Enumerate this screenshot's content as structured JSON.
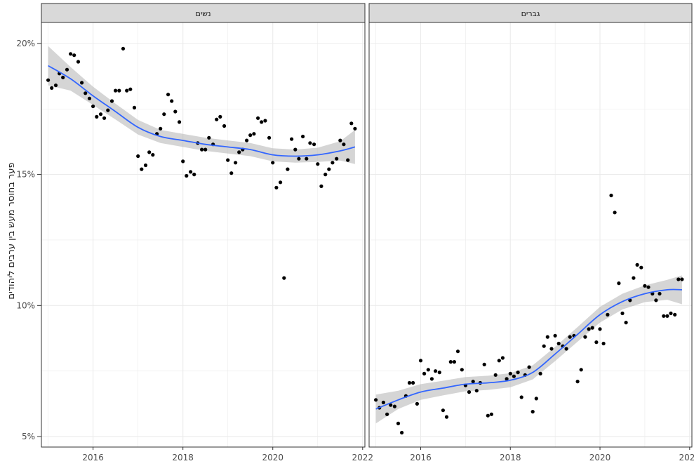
{
  "chart_data": {
    "type": "scatter",
    "ylabel": "פער בחוסר מעש בין ערבים ליהודים",
    "xlim": [
      2014.85,
      2022.05
    ],
    "ylim": [
      4.6,
      20.8
    ],
    "x_ticks": [
      2016,
      2018,
      2020,
      2022
    ],
    "x_tick_labels": [
      "2016",
      "2018",
      "2020",
      "2022"
    ],
    "y_ticks": [
      5,
      10,
      15,
      20
    ],
    "y_tick_labels": [
      "5%",
      "10%",
      "15%",
      "20%"
    ],
    "grid": true,
    "colors": {
      "points": "#000000",
      "smooth_line": "#3366ff",
      "ribbon": "#b3b3b3",
      "strip_fill": "#d9d9d9",
      "gridline": "#ebebeb",
      "panel_border": "#333333"
    },
    "panels": [
      {
        "name": "נשים",
        "points": [
          [
            2015.0,
            18.6
          ],
          [
            2015.08,
            18.3
          ],
          [
            2015.17,
            18.4
          ],
          [
            2015.25,
            18.85
          ],
          [
            2015.33,
            18.7
          ],
          [
            2015.42,
            19.0
          ],
          [
            2015.5,
            19.6
          ],
          [
            2015.58,
            19.55
          ],
          [
            2015.67,
            19.3
          ],
          [
            2015.75,
            18.5
          ],
          [
            2015.83,
            18.1
          ],
          [
            2015.92,
            17.9
          ],
          [
            2016.0,
            17.6
          ],
          [
            2016.08,
            17.2
          ],
          [
            2016.17,
            17.3
          ],
          [
            2016.25,
            17.15
          ],
          [
            2016.33,
            17.45
          ],
          [
            2016.42,
            17.8
          ],
          [
            2016.5,
            18.2
          ],
          [
            2016.58,
            18.2
          ],
          [
            2016.67,
            19.8
          ],
          [
            2016.75,
            18.2
          ],
          [
            2016.83,
            18.25
          ],
          [
            2016.92,
            17.55
          ],
          [
            2017.0,
            15.7
          ],
          [
            2017.08,
            15.2
          ],
          [
            2017.17,
            15.35
          ],
          [
            2017.25,
            15.85
          ],
          [
            2017.33,
            15.75
          ],
          [
            2017.42,
            16.55
          ],
          [
            2017.5,
            16.75
          ],
          [
            2017.58,
            17.3
          ],
          [
            2017.67,
            18.05
          ],
          [
            2017.75,
            17.8
          ],
          [
            2017.83,
            17.4
          ],
          [
            2017.92,
            17.0
          ],
          [
            2018.0,
            15.5
          ],
          [
            2018.08,
            14.95
          ],
          [
            2018.17,
            15.1
          ],
          [
            2018.25,
            15.0
          ],
          [
            2018.33,
            16.2
          ],
          [
            2018.42,
            15.95
          ],
          [
            2018.5,
            15.95
          ],
          [
            2018.58,
            16.4
          ],
          [
            2018.67,
            16.15
          ],
          [
            2018.75,
            17.1
          ],
          [
            2018.83,
            17.2
          ],
          [
            2018.92,
            16.85
          ],
          [
            2019.0,
            15.55
          ],
          [
            2019.08,
            15.05
          ],
          [
            2019.17,
            15.45
          ],
          [
            2019.25,
            15.85
          ],
          [
            2019.33,
            15.95
          ],
          [
            2019.42,
            16.3
          ],
          [
            2019.5,
            16.5
          ],
          [
            2019.58,
            16.55
          ],
          [
            2019.67,
            17.15
          ],
          [
            2019.75,
            17.0
          ],
          [
            2019.83,
            17.05
          ],
          [
            2019.92,
            16.4
          ],
          [
            2020.0,
            15.45
          ],
          [
            2020.08,
            14.5
          ],
          [
            2020.17,
            14.7
          ],
          [
            2020.25,
            11.05
          ],
          [
            2020.33,
            15.2
          ],
          [
            2020.42,
            16.35
          ],
          [
            2020.5,
            15.95
          ],
          [
            2020.58,
            15.6
          ],
          [
            2020.67,
            16.45
          ],
          [
            2020.75,
            15.6
          ],
          [
            2020.83,
            16.2
          ],
          [
            2020.92,
            16.15
          ],
          [
            2021.0,
            15.4
          ],
          [
            2021.08,
            14.55
          ],
          [
            2021.17,
            15.0
          ],
          [
            2021.25,
            15.2
          ],
          [
            2021.33,
            15.45
          ],
          [
            2021.42,
            15.6
          ],
          [
            2021.5,
            16.3
          ],
          [
            2021.58,
            16.15
          ],
          [
            2021.67,
            15.55
          ],
          [
            2021.75,
            16.95
          ],
          [
            2021.83,
            16.75
          ]
        ],
        "smooth": [
          [
            2015.0,
            19.15
          ],
          [
            2015.5,
            18.65
          ],
          [
            2016.0,
            18.0
          ],
          [
            2016.5,
            17.4
          ],
          [
            2017.0,
            16.8
          ],
          [
            2017.5,
            16.45
          ],
          [
            2018.0,
            16.3
          ],
          [
            2018.5,
            16.15
          ],
          [
            2019.0,
            16.05
          ],
          [
            2019.5,
            15.95
          ],
          [
            2020.0,
            15.75
          ],
          [
            2020.5,
            15.7
          ],
          [
            2021.0,
            15.75
          ],
          [
            2021.5,
            15.9
          ],
          [
            2021.83,
            16.05
          ]
        ],
        "band_halfwidth": [
          0.75,
          0.45,
          0.35,
          0.3,
          0.28,
          0.25,
          0.25,
          0.25,
          0.25,
          0.25,
          0.25,
          0.25,
          0.27,
          0.37,
          0.65
        ]
      },
      {
        "name": "גברים",
        "points": [
          [
            2015.0,
            6.4
          ],
          [
            2015.08,
            6.1
          ],
          [
            2015.17,
            6.3
          ],
          [
            2015.25,
            5.85
          ],
          [
            2015.33,
            6.2
          ],
          [
            2015.42,
            6.15
          ],
          [
            2015.5,
            5.5
          ],
          [
            2015.58,
            5.15
          ],
          [
            2015.67,
            6.55
          ],
          [
            2015.75,
            7.05
          ],
          [
            2015.83,
            7.05
          ],
          [
            2015.92,
            6.25
          ],
          [
            2016.0,
            7.9
          ],
          [
            2016.08,
            7.4
          ],
          [
            2016.17,
            7.55
          ],
          [
            2016.25,
            7.2
          ],
          [
            2016.33,
            7.5
          ],
          [
            2016.42,
            7.45
          ],
          [
            2016.5,
            6.0
          ],
          [
            2016.58,
            5.75
          ],
          [
            2016.67,
            7.85
          ],
          [
            2016.75,
            7.85
          ],
          [
            2016.83,
            8.25
          ],
          [
            2016.92,
            7.55
          ],
          [
            2017.0,
            6.95
          ],
          [
            2017.08,
            6.7
          ],
          [
            2017.17,
            7.1
          ],
          [
            2017.25,
            6.75
          ],
          [
            2017.33,
            7.05
          ],
          [
            2017.42,
            7.75
          ],
          [
            2017.5,
            5.8
          ],
          [
            2017.58,
            5.85
          ],
          [
            2017.67,
            7.35
          ],
          [
            2017.75,
            7.9
          ],
          [
            2017.83,
            8.0
          ],
          [
            2017.92,
            7.2
          ],
          [
            2018.0,
            7.4
          ],
          [
            2018.08,
            7.3
          ],
          [
            2018.17,
            7.45
          ],
          [
            2018.25,
            6.5
          ],
          [
            2018.33,
            7.35
          ],
          [
            2018.42,
            7.65
          ],
          [
            2018.5,
            5.95
          ],
          [
            2018.58,
            6.45
          ],
          [
            2018.67,
            7.4
          ],
          [
            2018.75,
            8.45
          ],
          [
            2018.83,
            8.8
          ],
          [
            2018.92,
            8.35
          ],
          [
            2019.0,
            8.85
          ],
          [
            2019.08,
            8.55
          ],
          [
            2019.17,
            8.45
          ],
          [
            2019.25,
            8.35
          ],
          [
            2019.33,
            8.8
          ],
          [
            2019.42,
            8.85
          ],
          [
            2019.5,
            7.1
          ],
          [
            2019.58,
            7.55
          ],
          [
            2019.67,
            8.8
          ],
          [
            2019.75,
            9.1
          ],
          [
            2019.83,
            9.15
          ],
          [
            2019.92,
            8.6
          ],
          [
            2020.0,
            9.1
          ],
          [
            2020.08,
            8.55
          ],
          [
            2020.17,
            9.65
          ],
          [
            2020.25,
            14.2
          ],
          [
            2020.33,
            13.55
          ],
          [
            2020.42,
            10.85
          ],
          [
            2020.5,
            9.7
          ],
          [
            2020.58,
            9.35
          ],
          [
            2020.67,
            10.2
          ],
          [
            2020.75,
            11.05
          ],
          [
            2020.83,
            11.55
          ],
          [
            2020.92,
            11.45
          ],
          [
            2021.0,
            10.75
          ],
          [
            2021.08,
            10.7
          ],
          [
            2021.17,
            10.45
          ],
          [
            2021.25,
            10.2
          ],
          [
            2021.33,
            10.45
          ],
          [
            2021.42,
            9.6
          ],
          [
            2021.5,
            9.6
          ],
          [
            2021.58,
            9.7
          ],
          [
            2021.67,
            9.65
          ],
          [
            2021.75,
            11.0
          ],
          [
            2021.83,
            11.0
          ]
        ],
        "smooth": [
          [
            2015.0,
            6.05
          ],
          [
            2015.5,
            6.4
          ],
          [
            2016.0,
            6.7
          ],
          [
            2016.5,
            6.85
          ],
          [
            2017.0,
            7.0
          ],
          [
            2017.5,
            7.05
          ],
          [
            2018.0,
            7.15
          ],
          [
            2018.5,
            7.45
          ],
          [
            2019.0,
            8.15
          ],
          [
            2019.5,
            8.9
          ],
          [
            2020.0,
            9.65
          ],
          [
            2020.5,
            10.15
          ],
          [
            2021.0,
            10.45
          ],
          [
            2021.5,
            10.6
          ],
          [
            2021.83,
            10.6
          ]
        ],
        "band_halfwidth": [
          0.55,
          0.35,
          0.3,
          0.28,
          0.27,
          0.27,
          0.27,
          0.27,
          0.27,
          0.28,
          0.3,
          0.3,
          0.32,
          0.38,
          0.55
        ]
      }
    ]
  }
}
